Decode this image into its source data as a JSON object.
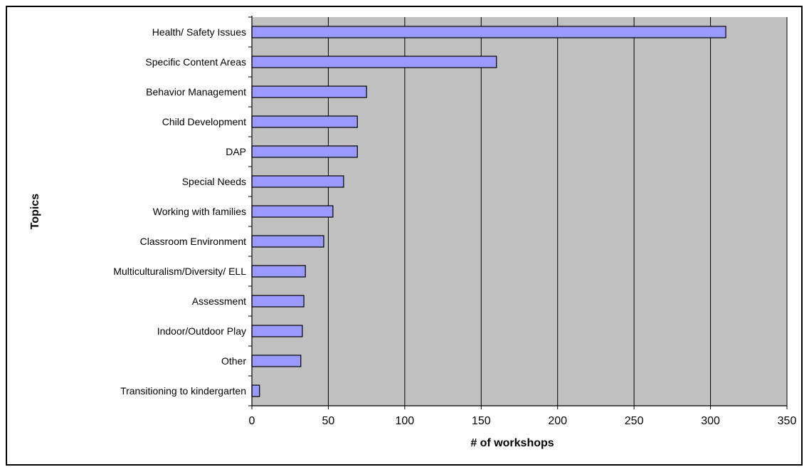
{
  "chart_data": {
    "type": "bar",
    "orientation": "horizontal",
    "categories": [
      "Health/ Safety Issues",
      "Specific Content Areas",
      "Behavior Management",
      "Child Development",
      "DAP",
      "Special Needs",
      "Working with families",
      "Classroom Environment",
      "Multiculturalism/Diversity/ ELL",
      "Assessment",
      "Indoor/Outdoor Play",
      "Other",
      "Transitioning to kindergarten"
    ],
    "values": [
      310,
      160,
      75,
      69,
      69,
      60,
      53,
      47,
      35,
      34,
      33,
      32,
      5
    ],
    "xlabel": "# of workshops",
    "ylabel": "Topics",
    "xlim": [
      0,
      350
    ],
    "xticks": [
      "0",
      "50",
      "100",
      "150",
      "200",
      "250",
      "300",
      "350"
    ],
    "grid": true,
    "legend": "none",
    "colors": {
      "bar_fill": "#9999ff",
      "bar_stroke": "#000000",
      "plot_background": "#c0c0c0",
      "gridline": "#000000"
    }
  }
}
